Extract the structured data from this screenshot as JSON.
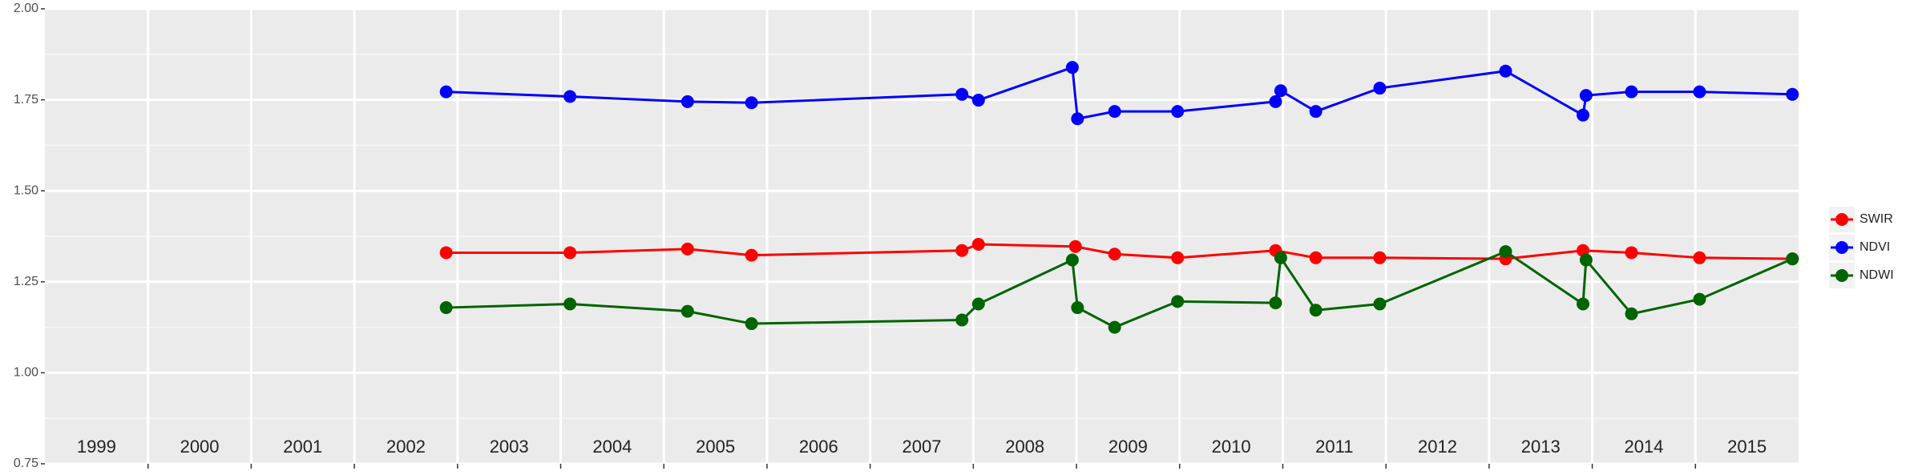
{
  "chart_data": {
    "type": "line",
    "xlim": [
      1999,
      2016
    ],
    "xgrid": [
      2000,
      2001,
      2002,
      2003,
      2004,
      2005,
      2006,
      2007,
      2008,
      2009,
      2010,
      2011,
      2012,
      2013,
      2014,
      2015
    ],
    "xticks": [
      {
        "value": 1999.5,
        "label": "1999"
      },
      {
        "value": 2000.5,
        "label": "2000"
      },
      {
        "value": 2001.5,
        "label": "2001"
      },
      {
        "value": 2002.5,
        "label": "2002"
      },
      {
        "value": 2003.5,
        "label": "2003"
      },
      {
        "value": 2004.5,
        "label": "2004"
      },
      {
        "value": 2005.5,
        "label": "2005"
      },
      {
        "value": 2006.5,
        "label": "2006"
      },
      {
        "value": 2007.5,
        "label": "2007"
      },
      {
        "value": 2008.5,
        "label": "2008"
      },
      {
        "value": 2009.5,
        "label": "2009"
      },
      {
        "value": 2010.5,
        "label": "2010"
      },
      {
        "value": 2011.5,
        "label": "2011"
      },
      {
        "value": 2012.5,
        "label": "2012"
      },
      {
        "value": 2013.5,
        "label": "2013"
      },
      {
        "value": 2014.5,
        "label": "2014"
      },
      {
        "value": 2015.5,
        "label": "2015"
      }
    ],
    "ylim": [
      0.75,
      2.0
    ],
    "yticks": [
      0.75,
      {
        "value": 1.0,
        "label": "1.00"
      },
      1.25,
      {
        "value": 1.5,
        "label": "1.50"
      },
      1.75,
      {
        "value": 2.0,
        "label": "2.00"
      }
    ],
    "grid": true,
    "legend": "right",
    "series": [
      {
        "name": "SWIR",
        "color": "#ff0000",
        "x": [
          2002.89,
          2004.09,
          2005.23,
          2005.85,
          2007.89,
          2008.05,
          2008.99,
          2009.37,
          2009.98,
          2010.93,
          2011.32,
          2011.94,
          2013.16,
          2013.91,
          2014.38,
          2015.04,
          2015.94
        ],
        "values": [
          1.33,
          1.33,
          1.34,
          1.323,
          1.336,
          1.353,
          1.347,
          1.326,
          1.316,
          1.336,
          1.316,
          1.316,
          1.313,
          1.336,
          1.33,
          1.316,
          1.313
        ]
      },
      {
        "name": "NDVI",
        "color": "#0000ff",
        "x": [
          2002.89,
          2004.09,
          2005.23,
          2005.85,
          2007.89,
          2008.05,
          2008.96,
          2009.01,
          2009.37,
          2009.98,
          2010.93,
          2010.98,
          2011.32,
          2011.94,
          2013.16,
          2013.91,
          2013.94,
          2014.38,
          2015.04,
          2015.94
        ],
        "values": [
          1.772,
          1.759,
          1.745,
          1.742,
          1.765,
          1.749,
          1.839,
          1.698,
          1.718,
          1.718,
          1.745,
          1.775,
          1.718,
          1.782,
          1.829,
          1.708,
          1.762,
          1.772,
          1.772,
          1.765
        ]
      },
      {
        "name": "NDWI",
        "color": "#006400",
        "x": [
          2002.89,
          2004.09,
          2005.23,
          2005.85,
          2007.89,
          2008.05,
          2008.96,
          2009.01,
          2009.37,
          2009.98,
          2010.93,
          2010.98,
          2011.32,
          2011.94,
          2013.16,
          2013.91,
          2013.94,
          2014.38,
          2015.04,
          2015.94
        ],
        "values": [
          1.179,
          1.189,
          1.169,
          1.135,
          1.145,
          1.189,
          1.31,
          1.179,
          1.125,
          1.196,
          1.192,
          1.316,
          1.172,
          1.189,
          1.333,
          1.189,
          1.31,
          1.162,
          1.202,
          1.313
        ]
      }
    ]
  }
}
